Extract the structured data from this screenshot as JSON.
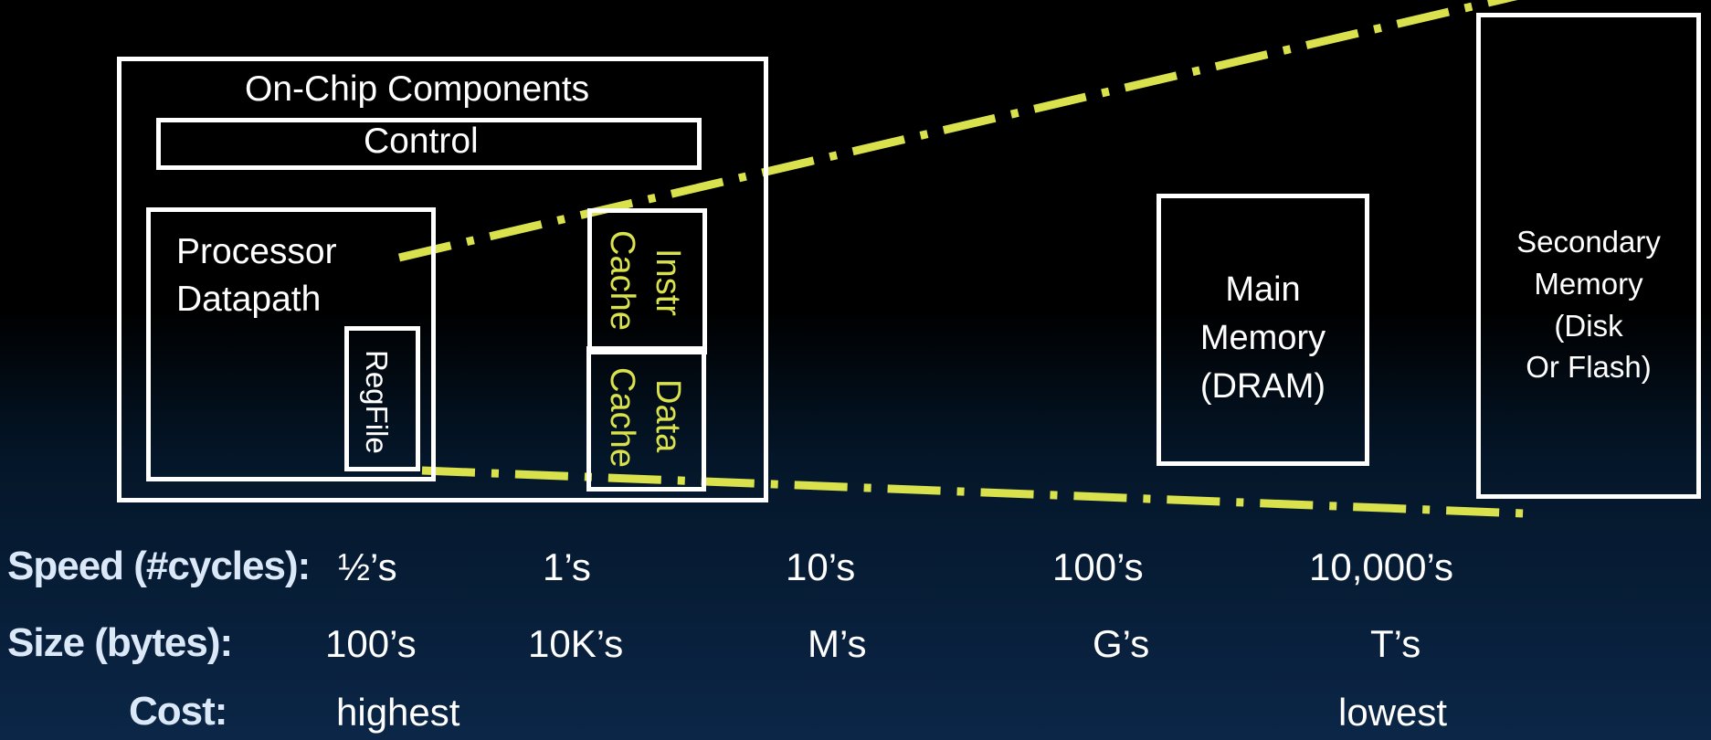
{
  "on_chip": {
    "title": "On-Chip Components",
    "control": "Control",
    "processor_line1": "Processor",
    "processor_line2": "Datapath",
    "regfile": "RegFile",
    "instr_cache_line1": "Instr",
    "instr_cache_line2": "Cache",
    "data_cache_line1": "Data",
    "data_cache_line2": "Cache"
  },
  "main_memory": {
    "line1": "Main",
    "line2": "Memory",
    "line3": "(DRAM)"
  },
  "secondary_memory": {
    "line1": "Secondary",
    "line2": "Memory",
    "line3": "(Disk",
    "line4": "Or Flash)"
  },
  "colors": {
    "background": "#000000",
    "box_border": "#ffffff",
    "highlight": "#d9e24d",
    "row_label": "#dbe8f7"
  },
  "speed": {
    "label": "Speed (#cycles):",
    "values": [
      "½’s",
      "1’s",
      "10’s",
      "100’s",
      "10,000’s"
    ]
  },
  "size": {
    "label": "Size (bytes):",
    "values": [
      "100’s",
      "10K’s",
      "M’s",
      "G’s",
      "T’s"
    ]
  },
  "cost": {
    "label": "Cost:",
    "values": [
      "highest",
      "lowest"
    ]
  }
}
